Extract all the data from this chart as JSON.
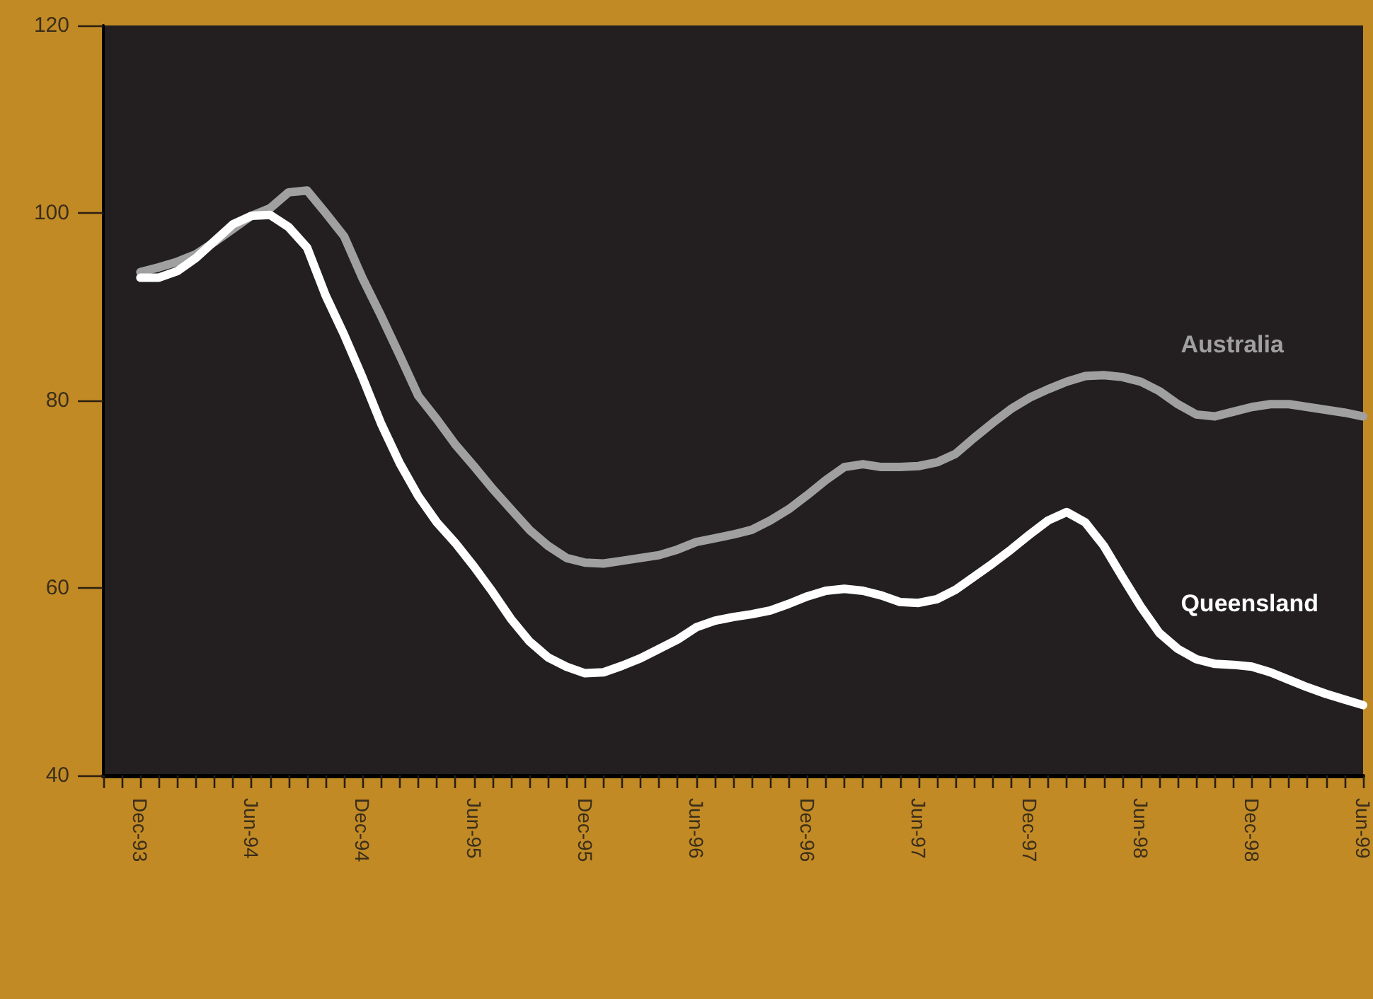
{
  "chart_data": {
    "type": "line",
    "categories": [
      null,
      null,
      "Dec-93",
      null,
      null,
      null,
      null,
      null,
      "Jun-94",
      null,
      null,
      null,
      null,
      null,
      "Dec-94",
      null,
      null,
      null,
      null,
      null,
      "Jun-95",
      null,
      null,
      null,
      null,
      null,
      "Dec-95",
      null,
      null,
      null,
      null,
      null,
      "Jun-96",
      null,
      null,
      null,
      null,
      null,
      "Dec-96",
      null,
      null,
      null,
      null,
      null,
      "Jun-97",
      null,
      null,
      null,
      null,
      null,
      "Dec-97",
      null,
      null,
      null,
      null,
      null,
      "Jun-98",
      null,
      null,
      null,
      null,
      null,
      "Dec-98",
      null,
      null,
      null,
      null,
      null,
      "Jun-99"
    ],
    "series": [
      {
        "name": "Australia",
        "color": "#a0a0a0",
        "values": [
          null,
          null,
          93.7,
          94.2,
          94.8,
          95.6,
          96.9,
          98.3,
          99.7,
          100.5,
          102.2,
          102.4,
          100.0,
          97.5,
          93.0,
          89.0,
          84.8,
          80.5,
          78.0,
          75.3,
          73.0,
          70.6,
          68.4,
          66.2,
          64.5,
          63.2,
          62.7,
          62.6,
          62.9,
          63.2,
          63.5,
          64.1,
          64.9,
          65.3,
          65.7,
          66.2,
          67.2,
          68.4,
          69.9,
          71.5,
          72.9,
          73.2,
          72.9,
          72.9,
          73.0,
          73.4,
          74.3,
          76.0,
          77.6,
          79.1,
          80.3,
          81.2,
          82.0,
          82.6,
          82.7,
          82.5,
          82.0,
          81.0,
          79.6,
          78.5,
          78.3,
          78.8,
          79.3,
          79.6,
          79.6,
          79.3,
          79.0,
          78.7,
          78.3
        ]
      },
      {
        "name": "Queensland",
        "color": "#ffffff",
        "values": [
          null,
          null,
          93.1,
          93.1,
          93.8,
          95.2,
          97.0,
          98.8,
          99.7,
          99.8,
          98.5,
          96.3,
          91.2,
          87.0,
          82.4,
          77.5,
          73.3,
          69.8,
          67.0,
          64.8,
          62.3,
          59.6,
          56.7,
          54.3,
          52.6,
          51.6,
          50.9,
          51.0,
          51.7,
          52.5,
          53.5,
          54.5,
          55.8,
          56.5,
          56.9,
          57.2,
          57.6,
          58.3,
          59.1,
          59.7,
          59.9,
          59.7,
          59.2,
          58.5,
          58.4,
          58.8,
          59.8,
          61.2,
          62.6,
          64.1,
          65.7,
          67.2,
          68.1,
          67.0,
          64.5,
          61.2,
          58.0,
          55.2,
          53.5,
          52.4,
          51.9,
          51.8,
          51.6,
          51.0,
          50.2,
          49.4,
          48.7,
          48.1,
          47.5
        ]
      }
    ],
    "ylim": [
      40,
      120
    ],
    "yticks": [
      40,
      60,
      80,
      100,
      120
    ],
    "grid": false,
    "legend": false,
    "marker": "none",
    "line_style": "solid"
  }
}
